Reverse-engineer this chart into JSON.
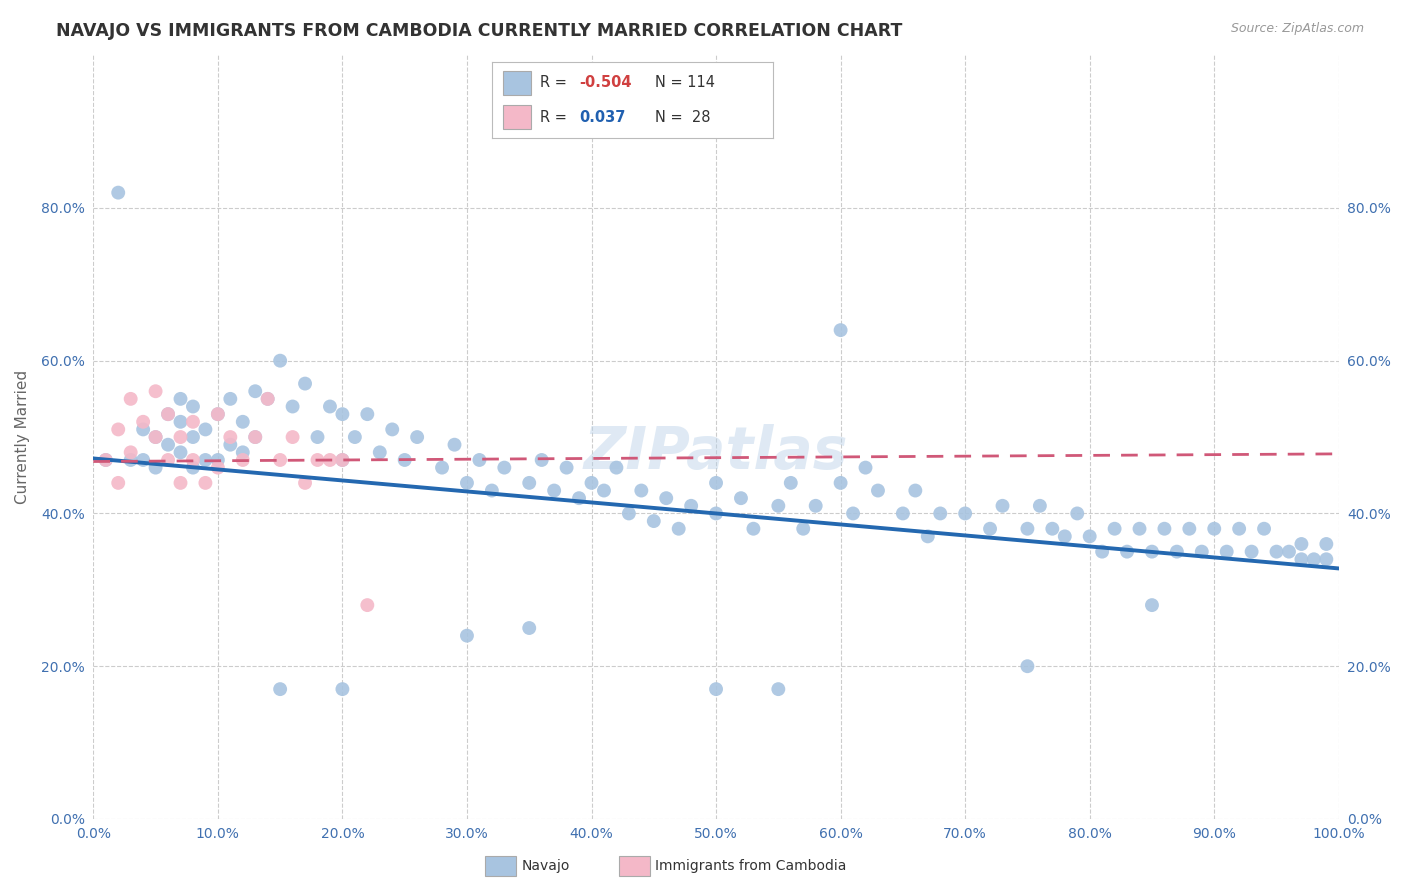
{
  "title": "NAVAJO VS IMMIGRANTS FROM CAMBODIA CURRENTLY MARRIED CORRELATION CHART",
  "source": "Source: ZipAtlas.com",
  "ylabel": "Currently Married",
  "xlim": [
    0.0,
    1.0
  ],
  "ylim": [
    0.0,
    1.0
  ],
  "xticks": [
    0.0,
    0.1,
    0.2,
    0.3,
    0.4,
    0.5,
    0.6,
    0.7,
    0.8,
    0.9,
    1.0
  ],
  "yticks": [
    0.0,
    0.2,
    0.4,
    0.6,
    0.8
  ],
  "xtick_labels": [
    "0.0%",
    "10.0%",
    "20.0%",
    "30.0%",
    "40.0%",
    "50.0%",
    "60.0%",
    "70.0%",
    "80.0%",
    "90.0%",
    "100.0%"
  ],
  "ytick_labels": [
    "0.0%",
    "20.0%",
    "40.0%",
    "60.0%",
    "80.0%"
  ],
  "navajo_R": "-0.504",
  "navajo_N": "114",
  "cambodia_R": "0.037",
  "cambodia_N": "28",
  "navajo_color": "#a8c4e0",
  "cambodia_color": "#f4b8c8",
  "navajo_line_color": "#2468b0",
  "cambodia_line_color": "#d05878",
  "background_color": "#ffffff",
  "grid_color": "#cccccc",
  "watermark": "ZIPatlas",
  "navajo_line_start_y": 0.472,
  "navajo_line_end_y": 0.328,
  "cambodia_line_start_y": 0.468,
  "cambodia_line_end_y": 0.478,
  "navajo_x": [
    0.01,
    0.02,
    0.03,
    0.04,
    0.04,
    0.05,
    0.05,
    0.06,
    0.06,
    0.07,
    0.07,
    0.07,
    0.08,
    0.08,
    0.08,
    0.09,
    0.09,
    0.1,
    0.1,
    0.11,
    0.11,
    0.12,
    0.12,
    0.13,
    0.13,
    0.14,
    0.15,
    0.16,
    0.17,
    0.18,
    0.19,
    0.2,
    0.2,
    0.21,
    0.22,
    0.23,
    0.24,
    0.25,
    0.26,
    0.28,
    0.29,
    0.3,
    0.31,
    0.32,
    0.33,
    0.35,
    0.36,
    0.37,
    0.38,
    0.39,
    0.4,
    0.41,
    0.42,
    0.43,
    0.44,
    0.45,
    0.46,
    0.47,
    0.48,
    0.5,
    0.5,
    0.52,
    0.53,
    0.55,
    0.56,
    0.57,
    0.58,
    0.6,
    0.61,
    0.62,
    0.63,
    0.65,
    0.66,
    0.67,
    0.68,
    0.7,
    0.72,
    0.73,
    0.75,
    0.76,
    0.77,
    0.78,
    0.79,
    0.8,
    0.81,
    0.82,
    0.83,
    0.84,
    0.85,
    0.86,
    0.87,
    0.88,
    0.89,
    0.9,
    0.91,
    0.92,
    0.93,
    0.94,
    0.95,
    0.96,
    0.97,
    0.97,
    0.98,
    0.99,
    0.99,
    0.15,
    0.2,
    0.3,
    0.35,
    0.55,
    0.6,
    0.75,
    0.85,
    0.5
  ],
  "navajo_y": [
    0.47,
    0.82,
    0.47,
    0.47,
    0.51,
    0.46,
    0.5,
    0.49,
    0.53,
    0.48,
    0.52,
    0.55,
    0.46,
    0.5,
    0.54,
    0.47,
    0.51,
    0.47,
    0.53,
    0.49,
    0.55,
    0.48,
    0.52,
    0.5,
    0.56,
    0.55,
    0.6,
    0.54,
    0.57,
    0.5,
    0.54,
    0.47,
    0.53,
    0.5,
    0.53,
    0.48,
    0.51,
    0.47,
    0.5,
    0.46,
    0.49,
    0.44,
    0.47,
    0.43,
    0.46,
    0.44,
    0.47,
    0.43,
    0.46,
    0.42,
    0.44,
    0.43,
    0.46,
    0.4,
    0.43,
    0.39,
    0.42,
    0.38,
    0.41,
    0.44,
    0.4,
    0.42,
    0.38,
    0.41,
    0.44,
    0.38,
    0.41,
    0.44,
    0.4,
    0.46,
    0.43,
    0.4,
    0.43,
    0.37,
    0.4,
    0.4,
    0.38,
    0.41,
    0.38,
    0.41,
    0.38,
    0.37,
    0.4,
    0.37,
    0.35,
    0.38,
    0.35,
    0.38,
    0.35,
    0.38,
    0.35,
    0.38,
    0.35,
    0.38,
    0.35,
    0.38,
    0.35,
    0.38,
    0.35,
    0.35,
    0.34,
    0.36,
    0.34,
    0.34,
    0.36,
    0.17,
    0.17,
    0.24,
    0.25,
    0.17,
    0.64,
    0.2,
    0.28,
    0.17
  ],
  "cambodia_x": [
    0.01,
    0.02,
    0.02,
    0.03,
    0.03,
    0.04,
    0.05,
    0.05,
    0.06,
    0.06,
    0.07,
    0.07,
    0.08,
    0.08,
    0.09,
    0.1,
    0.1,
    0.11,
    0.12,
    0.13,
    0.14,
    0.15,
    0.16,
    0.17,
    0.18,
    0.19,
    0.2,
    0.22
  ],
  "cambodia_y": [
    0.47,
    0.51,
    0.44,
    0.55,
    0.48,
    0.52,
    0.56,
    0.5,
    0.53,
    0.47,
    0.5,
    0.44,
    0.52,
    0.47,
    0.44,
    0.46,
    0.53,
    0.5,
    0.47,
    0.5,
    0.55,
    0.47,
    0.5,
    0.44,
    0.47,
    0.47,
    0.47,
    0.28
  ]
}
